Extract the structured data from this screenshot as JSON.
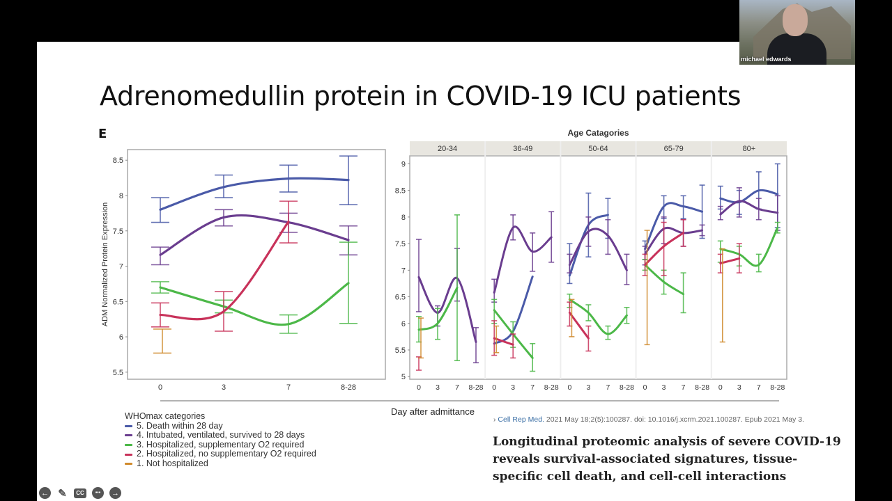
{
  "slide": {
    "title": "Adrenomedullin protein in COVID-19 ICU patients",
    "panel_label": "E"
  },
  "webcam": {
    "participant_name": "michael edwards"
  },
  "controls": [
    {
      "name": "previous-slide",
      "icon": "arrow-left-icon",
      "glyph": "←"
    },
    {
      "name": "pen-tool",
      "icon": "pencil-icon",
      "glyph": "✎"
    },
    {
      "name": "closed-captions",
      "icon": "cc-icon",
      "glyph": "CC"
    },
    {
      "name": "more-options",
      "icon": "ellipsis-icon",
      "glyph": "•••"
    },
    {
      "name": "next-slide",
      "icon": "arrow-right-icon",
      "glyph": "→"
    }
  ],
  "xlabel_shared": "Day after admittance",
  "legend": {
    "title": "WHOmax categories",
    "items": [
      {
        "label": "5. Death within 28 day",
        "color": "#4a5aa8"
      },
      {
        "label": "4. Intubated, ventilated, survived to 28 days",
        "color": "#6a3d8f"
      },
      {
        "label": "3. Hospitalized, supplementary O2 required",
        "color": "#4cb848"
      },
      {
        "label": "2. Hospitalized, no supplementary O2 required",
        "color": "#c8325a"
      },
      {
        "label": "1. Not hospitalized",
        "color": "#d08a2c"
      }
    ]
  },
  "citation": {
    "source": "Cell Rep Med.",
    "details": "2021 May 18;2(5):100287. doi: 10.1016/j.xcrm.2021.100287. Epub 2021 May 3."
  },
  "paper_title": "Longitudinal proteomic analysis of severe COVID-19 reveals survival-associated signatures, tissue-specific cell death, and cell-cell interactions",
  "chart_data": [
    {
      "type": "line",
      "title": "",
      "xlabel": "",
      "ylabel": "ADM Normalized Protein Expression",
      "categories": [
        "0",
        "3",
        "7",
        "8-28"
      ],
      "ylim": [
        5.4,
        8.65
      ],
      "yticks": [
        5.5,
        6,
        6.5,
        7,
        7.5,
        8,
        8.5
      ],
      "error_bars": true,
      "series": [
        {
          "name": "5. Death within 28 day",
          "color": "#4a5aa8",
          "values": [
            7.8,
            8.12,
            8.24,
            8.22
          ],
          "err_low": [
            7.62,
            7.97,
            8.05,
            7.87
          ],
          "err_high": [
            7.97,
            8.29,
            8.43,
            8.56
          ]
        },
        {
          "name": "4. Intubated, ventilated, survived to 28 days",
          "color": "#6a3d8f",
          "values": [
            7.16,
            7.69,
            7.62,
            7.37
          ],
          "err_low": [
            7.02,
            7.57,
            7.48,
            7.16
          ],
          "err_high": [
            7.27,
            7.8,
            7.75,
            7.57
          ]
        },
        {
          "name": "3. Hospitalized, supplementary O2 required",
          "color": "#4cb848",
          "values": [
            6.7,
            6.43,
            6.18,
            6.76
          ],
          "err_low": [
            6.62,
            6.34,
            6.05,
            6.19
          ],
          "err_high": [
            6.78,
            6.52,
            6.31,
            7.34
          ]
        },
        {
          "name": "2. Hospitalized, no supplementary O2 required",
          "color": "#c8325a",
          "values": [
            6.31,
            6.36,
            7.63,
            null
          ],
          "err_low": [
            6.14,
            6.08,
            7.33,
            null
          ],
          "err_high": [
            6.48,
            6.64,
            7.92,
            null
          ]
        },
        {
          "name": "1. Not hospitalized",
          "color": "#d08a2c",
          "values": [
            5.94,
            null,
            null,
            null
          ],
          "err_low": [
            5.77,
            null,
            null,
            null
          ],
          "err_high": [
            6.11,
            null,
            null,
            null
          ]
        }
      ]
    },
    {
      "type": "line",
      "title": "Age Catagories",
      "facets": [
        "20-34",
        "36-49",
        "50-64",
        "65-79",
        "80+"
      ],
      "categories": [
        "0",
        "3",
        "7",
        "8-28"
      ],
      "ylim": [
        4.95,
        9.15
      ],
      "yticks": [
        5,
        5.5,
        6,
        6.5,
        7,
        7.5,
        8,
        8.5,
        9
      ],
      "error_bars": true,
      "panels": [
        {
          "facet": "20-34",
          "series": [
            {
              "name": "4. Intubated, ventilated, survived to 28 days",
              "color": "#6a3d8f",
              "values": [
                6.87,
                6.2,
                6.85,
                5.65
              ],
              "err_low": [
                6.22,
                5.95,
                6.42,
                5.26
              ],
              "err_high": [
                7.58,
                6.33,
                7.41,
                5.92
              ]
            },
            {
              "name": "3. Hospitalized, supplementary O2 required",
              "color": "#4cb848",
              "values": [
                5.88,
                6.0,
                6.67,
                null
              ],
              "err_low": [
                5.65,
                5.7,
                5.3,
                null
              ],
              "err_high": [
                6.13,
                6.28,
                8.04,
                null
              ]
            },
            {
              "name": "2. Hospitalized, no supplementary O2 required",
              "color": "#c8325a",
              "values": [
                5.25,
                null,
                null,
                null
              ],
              "err_low": [
                5.12,
                null,
                null,
                null
              ],
              "err_high": [
                5.37,
                null,
                null,
                null
              ]
            },
            {
              "name": "1. Not hospitalized",
              "color": "#d08a2c",
              "values": [
                5.85,
                null,
                null,
                null
              ],
              "err_low": [
                5.35,
                null,
                null,
                null
              ],
              "err_high": [
                6.1,
                null,
                null,
                null
              ]
            }
          ]
        },
        {
          "facet": "36-49",
          "series": [
            {
              "name": "5. Death within 28 day",
              "color": "#4a5aa8",
              "values": [
                5.62,
                5.85,
                6.88,
                null
              ],
              "err_low": [
                null,
                null,
                null,
                null
              ],
              "err_high": [
                null,
                null,
                null,
                null
              ]
            },
            {
              "name": "4. Intubated, ventilated, survived to 28 days",
              "color": "#6a3d8f",
              "values": [
                6.58,
                7.8,
                7.35,
                7.62
              ],
              "err_low": [
                6.4,
                7.57,
                6.98,
                7.15
              ],
              "err_high": [
                6.83,
                8.04,
                7.7,
                8.1
              ]
            },
            {
              "name": "3. Hospitalized, supplementary O2 required",
              "color": "#4cb848",
              "values": [
                6.25,
                5.8,
                5.35,
                null
              ],
              "err_low": [
                6.0,
                5.55,
                5.1,
                null
              ],
              "err_high": [
                6.45,
                6.03,
                5.62,
                null
              ]
            },
            {
              "name": "2. Hospitalized, no supplementary O2 required",
              "color": "#c8325a",
              "values": [
                5.72,
                5.6,
                null,
                null
              ],
              "err_low": [
                5.4,
                5.35,
                null,
                null
              ],
              "err_high": [
                6.05,
                5.8,
                null,
                null
              ]
            },
            {
              "name": "1. Not hospitalized",
              "color": "#d08a2c",
              "values": [
                5.7,
                null,
                null,
                null
              ],
              "err_low": [
                5.45,
                null,
                null,
                null
              ],
              "err_high": [
                5.95,
                null,
                null,
                null
              ]
            }
          ]
        },
        {
          "facet": "50-64",
          "series": [
            {
              "name": "5. Death within 28 day",
              "color": "#4a5aa8",
              "values": [
                6.9,
                7.85,
                8.04,
                null
              ],
              "err_low": [
                6.75,
                7.25,
                7.6,
                null
              ],
              "err_high": [
                7.5,
                8.45,
                8.35,
                null
              ]
            },
            {
              "name": "4. Intubated, ventilated, survived to 28 days",
              "color": "#6a3d8f",
              "values": [
                7.1,
                7.73,
                7.65,
                7.0
              ],
              "err_low": [
                6.95,
                7.45,
                7.3,
                6.73
              ],
              "err_high": [
                7.3,
                8.0,
                7.95,
                7.3
              ]
            },
            {
              "name": "3. Hospitalized, supplementary O2 required",
              "color": "#4cb848",
              "values": [
                6.45,
                6.2,
                5.8,
                6.15
              ],
              "err_low": [
                6.3,
                6.05,
                5.7,
                6.0
              ],
              "err_high": [
                6.55,
                6.35,
                5.95,
                6.3
              ]
            },
            {
              "name": "2. Hospitalized, no supplementary O2 required",
              "color": "#c8325a",
              "values": [
                6.2,
                5.72,
                null,
                null
              ],
              "err_low": [
                5.95,
                5.48,
                null,
                null
              ],
              "err_high": [
                6.4,
                5.95,
                null,
                null
              ]
            },
            {
              "name": "1. Not hospitalized",
              "color": "#d08a2c",
              "values": [
                6.0,
                null,
                null,
                null
              ],
              "err_low": [
                5.75,
                null,
                null,
                null
              ],
              "err_high": [
                6.45,
                null,
                null,
                null
              ]
            }
          ]
        },
        {
          "facet": "65-79",
          "series": [
            {
              "name": "5. Death within 28 day",
              "color": "#4a5aa8",
              "values": [
                7.4,
                8.2,
                8.2,
                8.1
              ],
              "err_low": [
                7.2,
                7.97,
                7.97,
                7.6
              ],
              "err_high": [
                7.55,
                8.4,
                8.4,
                8.6
              ]
            },
            {
              "name": "4. Intubated, ventilated, survived to 28 days",
              "color": "#6a3d8f",
              "values": [
                7.3,
                7.78,
                7.7,
                7.75
              ],
              "err_low": [
                7.1,
                7.5,
                7.45,
                7.65
              ],
              "err_high": [
                7.45,
                8.0,
                7.95,
                7.85
              ]
            },
            {
              "name": "3. Hospitalized, supplementary O2 required",
              "color": "#4cb848",
              "values": [
                7.1,
                6.78,
                6.55,
                null
              ],
              "err_low": [
                7.0,
                6.55,
                6.2,
                null
              ],
              "err_high": [
                7.2,
                7.0,
                6.95,
                null
              ]
            },
            {
              "name": "2. Hospitalized, no supplementary O2 required",
              "color": "#c8325a",
              "values": [
                7.1,
                7.45,
                7.7,
                null
              ],
              "err_low": [
                6.9,
                6.9,
                7.45,
                null
              ],
              "err_high": [
                7.3,
                7.9,
                7.95,
                null
              ]
            },
            {
              "name": "1. Not hospitalized",
              "color": "#d08a2c",
              "values": [
                7.2,
                null,
                null,
                null
              ],
              "err_low": [
                5.6,
                null,
                null,
                null
              ],
              "err_high": [
                7.75,
                null,
                null,
                null
              ]
            }
          ]
        },
        {
          "facet": "80+",
          "series": [
            {
              "name": "5. Death within 28 day",
              "color": "#4a5aa8",
              "values": [
                8.35,
                8.28,
                8.5,
                8.43
              ],
              "err_low": [
                8.15,
                8.05,
                8.15,
                7.8
              ],
              "err_high": [
                8.58,
                8.5,
                8.85,
                9.0
              ]
            },
            {
              "name": "4. Intubated, ventilated, survived to 28 days",
              "color": "#6a3d8f",
              "values": [
                8.05,
                8.3,
                8.15,
                8.08
              ],
              "err_low": [
                7.95,
                8.0,
                7.95,
                7.75
              ],
              "err_high": [
                8.2,
                8.55,
                8.35,
                8.4
              ]
            },
            {
              "name": "3. Hospitalized, supplementary O2 required",
              "color": "#4cb848",
              "values": [
                7.4,
                7.3,
                7.1,
                7.8
              ],
              "err_low": [
                7.15,
                7.08,
                6.97,
                7.7
              ],
              "err_high": [
                7.55,
                7.45,
                7.3,
                7.9
              ]
            },
            {
              "name": "2. Hospitalized, no supplementary O2 required",
              "color": "#c8325a",
              "values": [
                7.13,
                7.22,
                null,
                null
              ],
              "err_low": [
                6.95,
                6.95,
                null,
                null
              ],
              "err_high": [
                7.3,
                7.5,
                null,
                null
              ]
            },
            {
              "name": "1. Not hospitalized",
              "color": "#d08a2c",
              "values": [
                6.55,
                null,
                null,
                null
              ],
              "err_low": [
                5.65,
                null,
                null,
                null
              ],
              "err_high": [
                7.4,
                null,
                null,
                null
              ]
            }
          ]
        }
      ]
    }
  ]
}
